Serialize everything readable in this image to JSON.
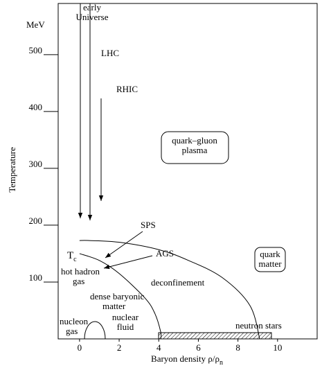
{
  "chart_data": {
    "type": "line",
    "xlabel": "Baryon density  ρ/ρ",
    "xlabel_subscript": "n",
    "ylabel": "Temperature",
    "xlim": [
      -1.08,
      12.0
    ],
    "ylim": [
      0,
      590
    ],
    "xticks": [
      0,
      2,
      4,
      6,
      8,
      10
    ],
    "yticks": [
      100,
      200,
      300,
      400,
      500
    ],
    "series": [
      {
        "color": "#000000",
        "x": [
          0,
          0.5,
          2,
          4,
          5.5,
          7.2,
          8.6,
          9.1
        ],
        "y": [
          173,
          173,
          170,
          157,
          138,
          108,
          59,
          0
        ]
      },
      {
        "color": "#000000",
        "x": [
          0,
          1,
          2,
          3.3,
          3.8,
          4.1,
          4.1
        ],
        "y": [
          150,
          138,
          115,
          72,
          45,
          12,
          0
        ]
      }
    ],
    "annotations": [
      [
        "MeV"
      ],
      [
        "early",
        "Universe"
      ],
      [
        "LHC"
      ],
      [
        "RHIC"
      ],
      [
        "quark–gluon",
        "plasma"
      ],
      [
        "SPS"
      ],
      [
        "AGS"
      ],
      [
        "T",
        "c"
      ],
      [
        "hot hadron",
        "gas"
      ],
      [
        "deconfinement"
      ],
      [
        "dense baryonic",
        "matter"
      ],
      [
        "nucleon",
        "gas"
      ],
      [
        "nuclear",
        "fluid"
      ],
      [
        "neutron stars"
      ],
      [
        "quark",
        "matter"
      ]
    ]
  }
}
